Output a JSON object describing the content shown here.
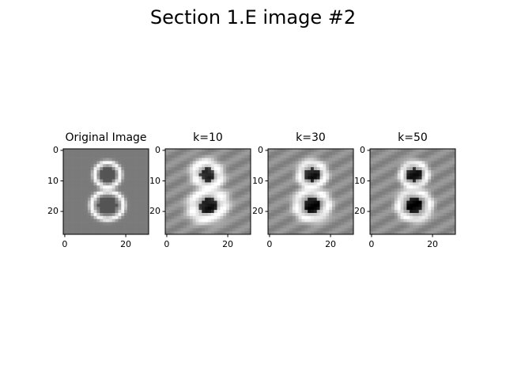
{
  "figure": {
    "title": "Section 1.E image #2",
    "colormap": "gray",
    "panels": [
      {
        "title": "Original Image",
        "content": "handwritten digit 8"
      },
      {
        "title": "k=10",
        "content": "reconstruction with k=10 components"
      },
      {
        "title": "k=30",
        "content": "reconstruction with k=30 components"
      },
      {
        "title": "k=50",
        "content": "reconstruction with k=50 components"
      }
    ],
    "xticks": [
      "0",
      "20"
    ],
    "yticks": [
      "0",
      "10",
      "20"
    ],
    "image_size": [
      28,
      28
    ]
  }
}
